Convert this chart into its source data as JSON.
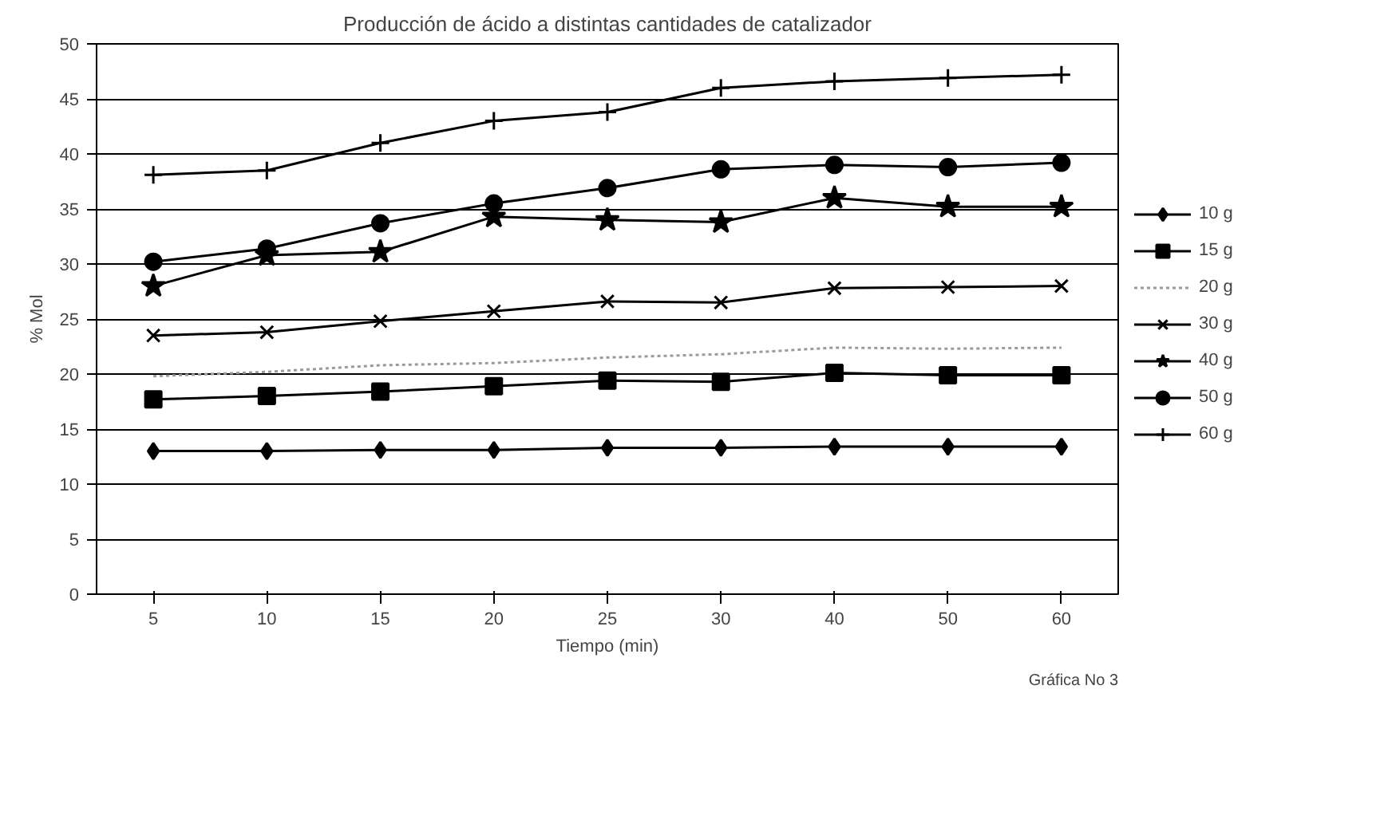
{
  "chart_data": {
    "type": "line",
    "title": "Producción de ácido a distintas cantidades de catalizador",
    "xlabel": "Tiempo (min)",
    "ylabel": "% Mol",
    "categories": [
      "5",
      "10",
      "15",
      "20",
      "25",
      "30",
      "40",
      "50",
      "60"
    ],
    "ylim": [
      0,
      50
    ],
    "yticks": [
      0,
      5,
      10,
      15,
      20,
      25,
      30,
      35,
      40,
      45,
      50
    ],
    "grid": "y",
    "legend": "right",
    "series": [
      {
        "name": "10 g",
        "color": "#000000",
        "marker": "diamond",
        "line_style": "solid",
        "values": [
          13.0,
          13.0,
          13.1,
          13.1,
          13.3,
          13.3,
          13.4,
          13.4,
          13.4
        ]
      },
      {
        "name": "15 g",
        "color": "#000000",
        "marker": "square",
        "line_style": "solid",
        "values": [
          17.7,
          18.0,
          18.4,
          18.9,
          19.4,
          19.3,
          20.1,
          19.9,
          19.9
        ]
      },
      {
        "name": "20 g",
        "color": "#9a9a9a",
        "marker": "none",
        "line_style": "dotted",
        "values": [
          19.8,
          20.2,
          20.8,
          21.0,
          21.5,
          21.8,
          22.4,
          22.3,
          22.4
        ]
      },
      {
        "name": "30 g",
        "color": "#000000",
        "marker": "x",
        "line_style": "solid",
        "values": [
          23.5,
          23.8,
          24.8,
          25.7,
          26.6,
          26.5,
          27.8,
          27.9,
          28.0
        ]
      },
      {
        "name": "40 g",
        "color": "#000000",
        "marker": "star",
        "line_style": "solid",
        "values": [
          28.0,
          30.8,
          31.1,
          34.3,
          34.0,
          33.8,
          36.0,
          35.2,
          35.2
        ]
      },
      {
        "name": "50 g",
        "color": "#000000",
        "marker": "circle",
        "line_style": "solid",
        "values": [
          30.2,
          31.4,
          33.7,
          35.5,
          36.9,
          38.6,
          39.0,
          38.8,
          39.2
        ]
      },
      {
        "name": "60 g",
        "color": "#000000",
        "marker": "cross",
        "line_style": "solid",
        "values": [
          38.1,
          38.5,
          41.0,
          43.0,
          43.8,
          46.0,
          46.6,
          46.9,
          47.2
        ]
      }
    ],
    "annotations": [
      "Gráfica No 3"
    ]
  }
}
